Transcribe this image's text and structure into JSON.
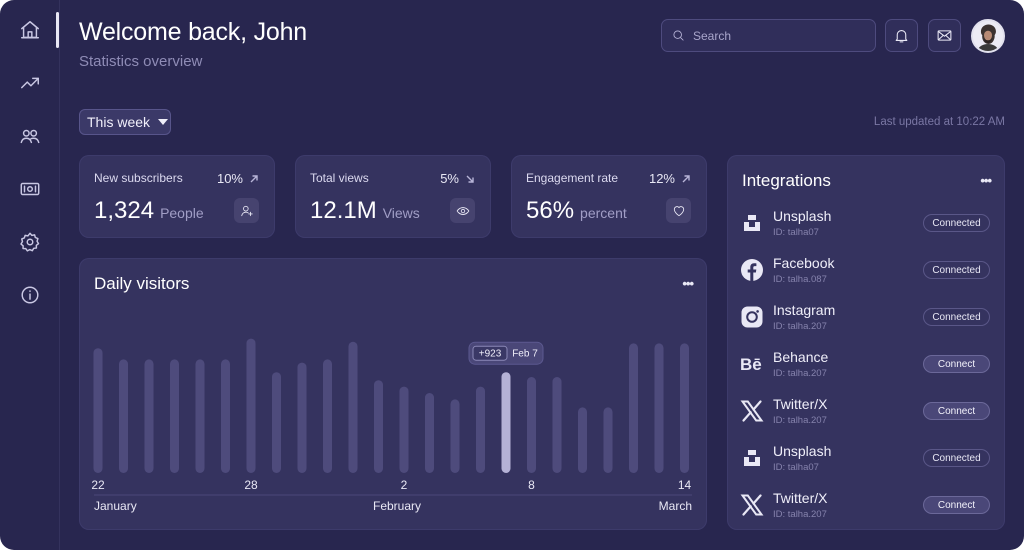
{
  "header": {
    "title": "Welcome back, John",
    "subtitle": "Statistics overview",
    "search_placeholder": "Search"
  },
  "sidebar": {
    "items": [
      {
        "icon": "home-icon",
        "active": true
      },
      {
        "icon": "trending-up-icon"
      },
      {
        "icon": "users-icon"
      },
      {
        "icon": "money-icon"
      },
      {
        "icon": "settings-icon"
      },
      {
        "icon": "info-icon"
      }
    ]
  },
  "filter": {
    "range_label": "This week",
    "last_updated": "Last updated at 10:22 AM"
  },
  "stats": [
    {
      "label": "New subscribers",
      "percent": "10%",
      "trend": "up",
      "value": "1,324",
      "unit": "People",
      "icon": "add-user-icon"
    },
    {
      "label": "Total views",
      "percent": "5%",
      "trend": "down",
      "value": "12.1M",
      "unit": "Views",
      "icon": "eye-icon"
    },
    {
      "label": "Engagement rate",
      "percent": "12%",
      "trend": "up",
      "value": "56%",
      "unit": "percent",
      "icon": "heart-icon"
    }
  ],
  "chart": {
    "title": "Daily visitors",
    "tooltip_value": "+923",
    "tooltip_date": "Feb 7"
  },
  "chart_data": {
    "type": "bar",
    "title": "Daily visitors",
    "values": [
      0.78,
      0.71,
      0.71,
      0.71,
      0.71,
      0.71,
      0.84,
      0.63,
      0.69,
      0.71,
      0.82,
      0.58,
      0.54,
      0.5,
      0.46,
      0.54,
      0.63,
      0.6,
      0.6,
      0.41,
      0.41,
      0.81,
      0.81,
      0.81
    ],
    "highlight_index": 16,
    "tick_labels": [
      {
        "index": 0,
        "label": "22"
      },
      {
        "index": 6,
        "label": "28"
      },
      {
        "index": 12,
        "label": "2"
      },
      {
        "index": 17,
        "label": "8"
      },
      {
        "index": 23,
        "label": "14"
      }
    ],
    "month_labels": [
      "January",
      "February",
      "March"
    ],
    "grid": false
  },
  "integrations": {
    "title": "Integrations",
    "items": [
      {
        "name": "Unsplash",
        "id": "ID: talha07",
        "status": "Connected",
        "icon": "unsplash-icon"
      },
      {
        "name": "Facebook",
        "id": "ID: talha.087",
        "status": "Connected",
        "icon": "facebook-icon"
      },
      {
        "name": "Instagram",
        "id": "ID: talha.207",
        "status": "Connected",
        "icon": "instagram-icon"
      },
      {
        "name": "Behance",
        "id": "ID: talha.207",
        "status": "Connect",
        "icon": "behance-icon"
      },
      {
        "name": "Twitter/X",
        "id": "ID: talha.207",
        "status": "Connect",
        "icon": "x-icon"
      },
      {
        "name": "Unsplash",
        "id": "ID: talha07",
        "status": "Connected",
        "icon": "unsplash-icon"
      },
      {
        "name": "Twitter/X",
        "id": "ID: talha.207",
        "status": "Connect",
        "icon": "x-icon"
      }
    ]
  },
  "colors": {
    "background": "#28264f",
    "card": "#35335f",
    "bar": "#4e4b7c",
    "bar_highlight": "#b5b2d6"
  }
}
